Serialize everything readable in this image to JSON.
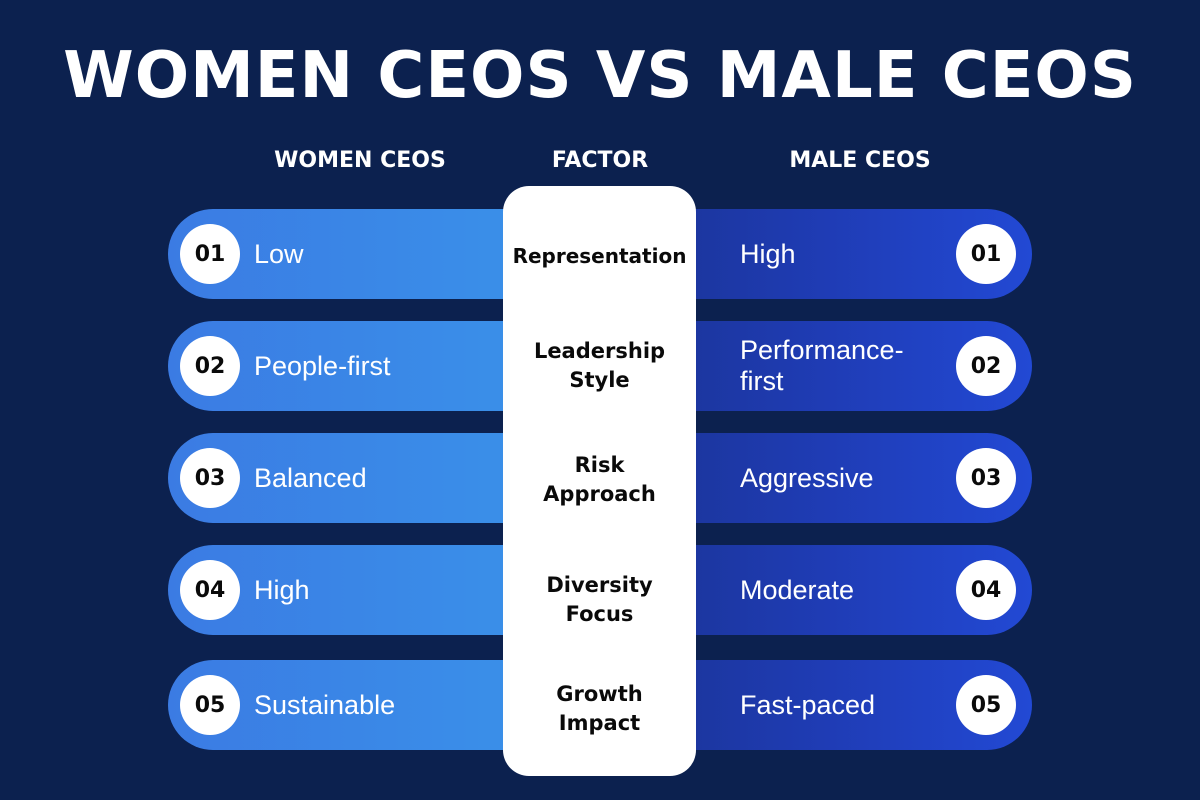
{
  "title": "WOMEN CEOS VS MALE CEOS",
  "headers": {
    "women": "WOMEN CEOS",
    "factor": "FACTOR",
    "male": "MALE CEOS"
  },
  "rows": [
    {
      "num": "01",
      "women": "Low",
      "factor": "Representation",
      "male": "High"
    },
    {
      "num": "02",
      "women": "People-first",
      "factor": "Leadership Style",
      "male": "Performance-first"
    },
    {
      "num": "03",
      "women": "Balanced",
      "factor": "Risk Approach",
      "male": "Aggressive"
    },
    {
      "num": "04",
      "women": "High",
      "factor": "Diversity Focus",
      "male": "Moderate"
    },
    {
      "num": "05",
      "women": "Sustainable",
      "factor": "Growth Impact",
      "male": "Fast-paced"
    }
  ],
  "colors": {
    "background": "#0c214f",
    "women_accent": "#3b99ea",
    "male_accent": "#2249d4"
  }
}
